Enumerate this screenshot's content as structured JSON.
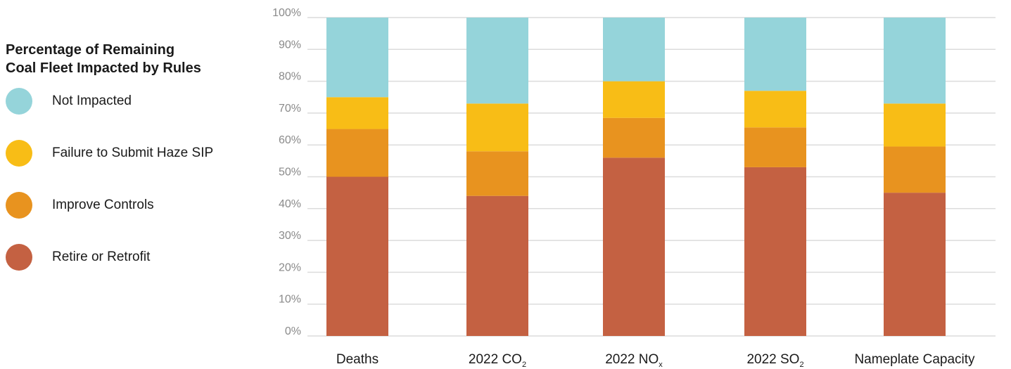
{
  "legend": {
    "title_line1": "Percentage of Remaining",
    "title_line2": "Coal Fleet Impacted by Rules"
  },
  "chart_data": {
    "type": "bar",
    "stacked": true,
    "title": "Percentage of Remaining Coal Fleet Impacted by Rules",
    "categories": [
      {
        "label": "Deaths",
        "sub": ""
      },
      {
        "label": "2022 CO",
        "sub": "2"
      },
      {
        "label": "2022 NO",
        "sub": "x"
      },
      {
        "label": "2022 SO",
        "sub": "2"
      },
      {
        "label": "Nameplate Capacity",
        "sub": ""
      }
    ],
    "series": [
      {
        "name": "Retire or Retrofit",
        "color": "#c46142",
        "values": [
          50,
          44,
          56,
          53,
          45
        ]
      },
      {
        "name": "Improve Controls",
        "color": "#e8931f",
        "values": [
          15,
          14,
          12.5,
          12.5,
          14.5
        ]
      },
      {
        "name": "Failure to Submit Haze SIP",
        "color": "#f8bd16",
        "values": [
          10,
          15,
          11.5,
          11.5,
          13.5
        ]
      },
      {
        "name": "Not Impacted",
        "color": "#95d4da",
        "values": [
          25,
          27,
          20,
          23,
          27
        ]
      }
    ],
    "legend_order": [
      "Not Impacted",
      "Failure to Submit Haze SIP",
      "Improve Controls",
      "Retire or Retrofit"
    ],
    "ylim": [
      0,
      100
    ],
    "yticks": [
      "0%",
      "10%",
      "20%",
      "30%",
      "40%",
      "50%",
      "60%",
      "70%",
      "80%",
      "90%",
      "100%"
    ],
    "grid": true,
    "legend_position": "left"
  }
}
